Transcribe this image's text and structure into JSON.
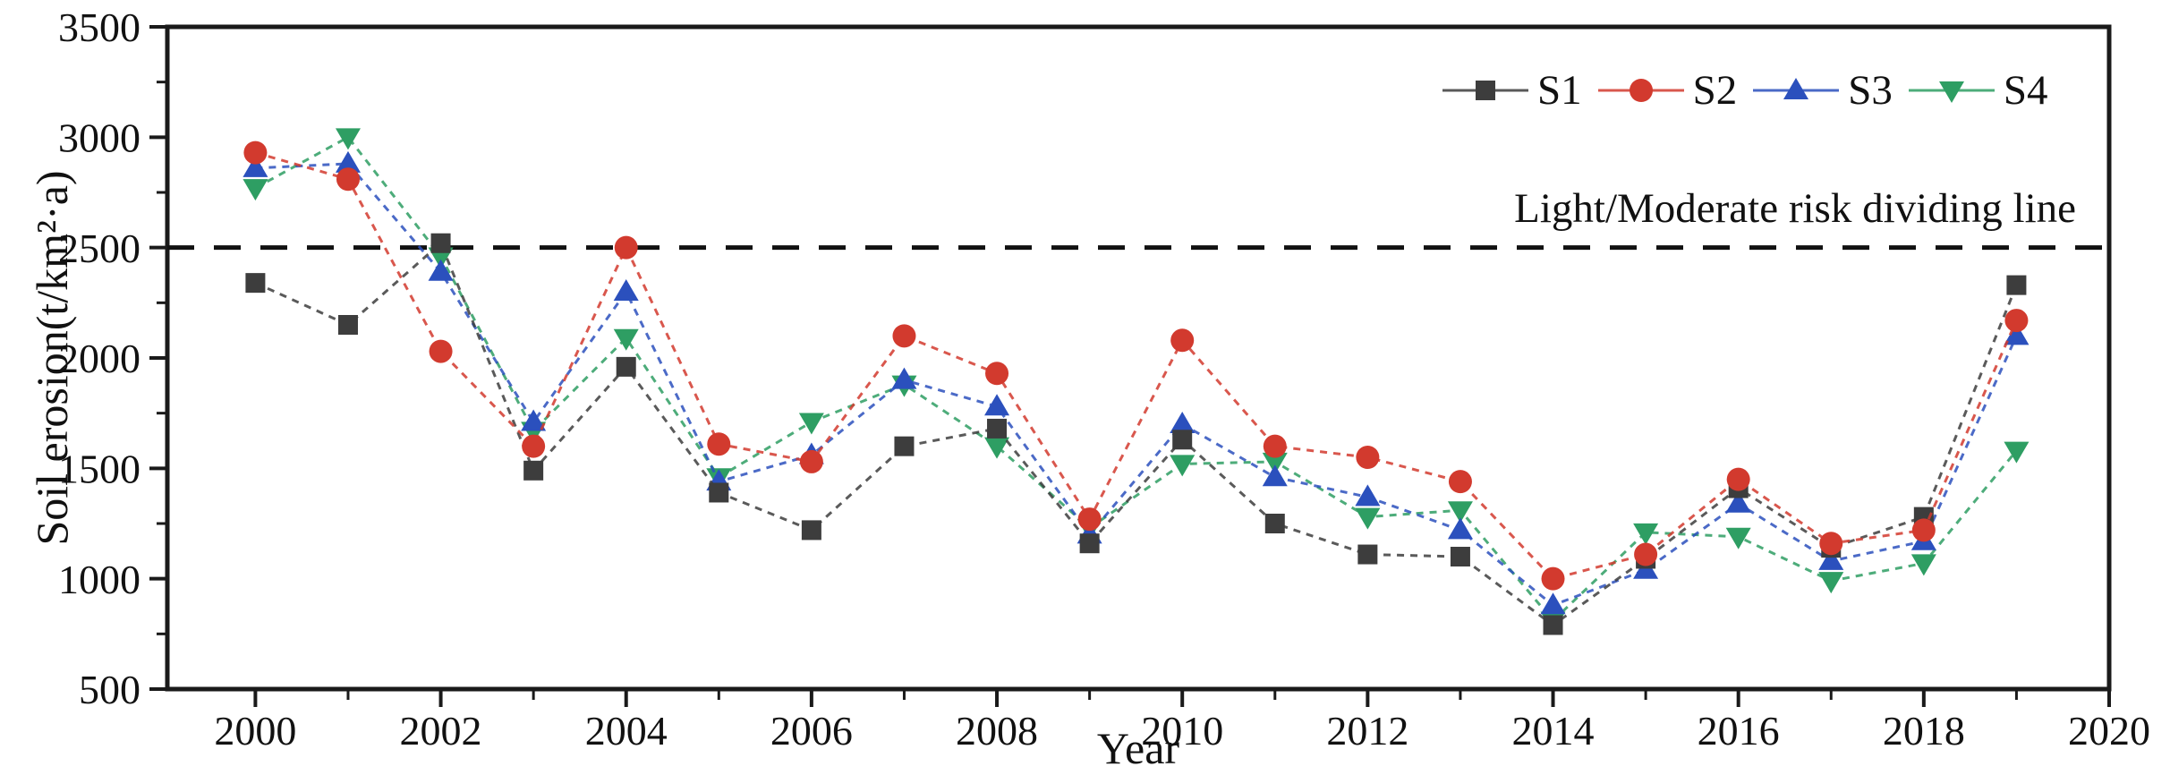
{
  "figure": {
    "y_axis_title": "Soil erosion(t/km²·a)",
    "x_axis_title": "Year",
    "risk_line_label": "Light/Moderate risk dividing line"
  },
  "chart_data": {
    "type": "line",
    "title": "",
    "xlabel": "Year",
    "ylabel": "Soil erosion(t/km²·a)",
    "x": [
      2000,
      2001,
      2002,
      2003,
      2004,
      2005,
      2006,
      2007,
      2008,
      2009,
      2010,
      2011,
      2012,
      2013,
      2014,
      2015,
      2016,
      2017,
      2018,
      2019
    ],
    "series": [
      {
        "name": "S1",
        "marker": "square",
        "color": "#3d3d3d",
        "values": [
          2340,
          2150,
          2520,
          1490,
          1960,
          1390,
          1220,
          1600,
          1680,
          1160,
          1630,
          1250,
          1110,
          1100,
          790,
          1090,
          1410,
          1140,
          1280,
          2330
        ]
      },
      {
        "name": "S2",
        "marker": "circle",
        "color": "#d23a2e",
        "values": [
          2930,
          2810,
          2030,
          1600,
          2500,
          1610,
          1530,
          2100,
          1930,
          1270,
          2080,
          1600,
          1550,
          1440,
          1000,
          1110,
          1450,
          1160,
          1220,
          2170
        ]
      },
      {
        "name": "S3",
        "marker": "triangle-up",
        "color": "#2b50bd",
        "values": [
          2860,
          2880,
          2390,
          1710,
          2300,
          1440,
          1560,
          1900,
          1780,
          1200,
          1700,
          1460,
          1370,
          1220,
          880,
          1040,
          1340,
          1080,
          1170,
          2100
        ]
      },
      {
        "name": "S4",
        "marker": "triangle-down",
        "color": "#2e9e63",
        "values": [
          2770,
          3000,
          2460,
          1670,
          2090,
          1460,
          1710,
          1880,
          1600,
          1230,
          1520,
          1530,
          1280,
          1310,
          810,
          1210,
          1190,
          990,
          1070,
          1580
        ]
      }
    ],
    "reference_line": {
      "value": 2500,
      "label": "Light/Moderate risk dividing line",
      "style": "dashed",
      "color": "#111111"
    },
    "x_axis": {
      "min": 1999.05,
      "max": 2020,
      "major_ticks": [
        2000,
        2002,
        2004,
        2006,
        2008,
        2010,
        2012,
        2014,
        2016,
        2018,
        2020
      ],
      "minor_ticks": [
        2001,
        2003,
        2005,
        2007,
        2009,
        2011,
        2013,
        2015,
        2017,
        2019
      ]
    },
    "y_axis": {
      "min": 500,
      "max": 3500,
      "major_ticks": [
        500,
        1000,
        1500,
        2000,
        2500,
        3000,
        3500
      ],
      "minor_ticks": [
        750,
        1250,
        1750,
        2250,
        2750,
        3250
      ]
    },
    "legend_position": "top-right",
    "grid": false
  }
}
